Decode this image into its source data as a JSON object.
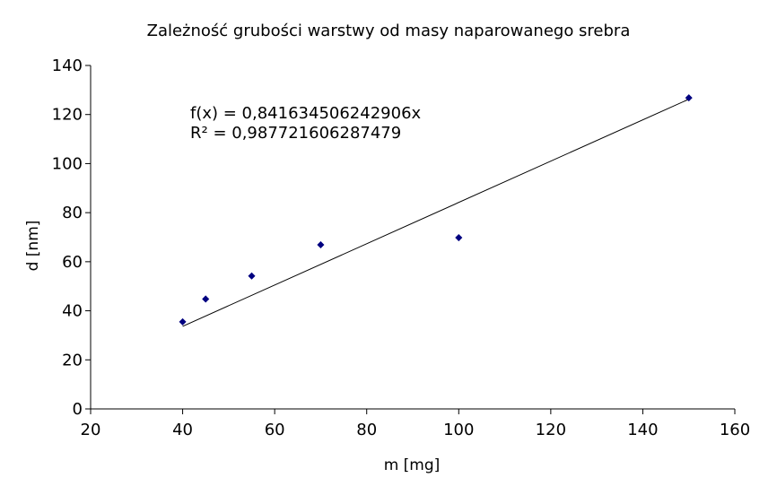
{
  "chart_data": {
    "type": "scatter",
    "title": "Zależność grubości warstwy od masy naparowanego srebra",
    "xlabel": "m [mg]",
    "ylabel": "d [nm]",
    "xlim": [
      20,
      160
    ],
    "ylim": [
      0,
      140
    ],
    "xticks": [
      "20",
      "40",
      "60",
      "80",
      "100",
      "120",
      "140",
      "160"
    ],
    "yticks": [
      "0",
      "20",
      "40",
      "60",
      "80",
      "100",
      "120",
      "140"
    ],
    "grid": false,
    "legend": "none",
    "series": [
      {
        "marker_color": "#000080",
        "x": [
          40,
          45,
          55,
          70,
          100,
          150
        ],
        "y": [
          35.5,
          44.8,
          54.2,
          66.9,
          69.8,
          126.8
        ]
      }
    ],
    "trendline": {
      "slope": 0.841634506242906,
      "x_range": [
        40,
        150
      ],
      "color": "#000000"
    },
    "annotations": {
      "equation": "f(x) = 0,841634506242906x",
      "r_squared": "R² = 0,987721606287479"
    }
  }
}
